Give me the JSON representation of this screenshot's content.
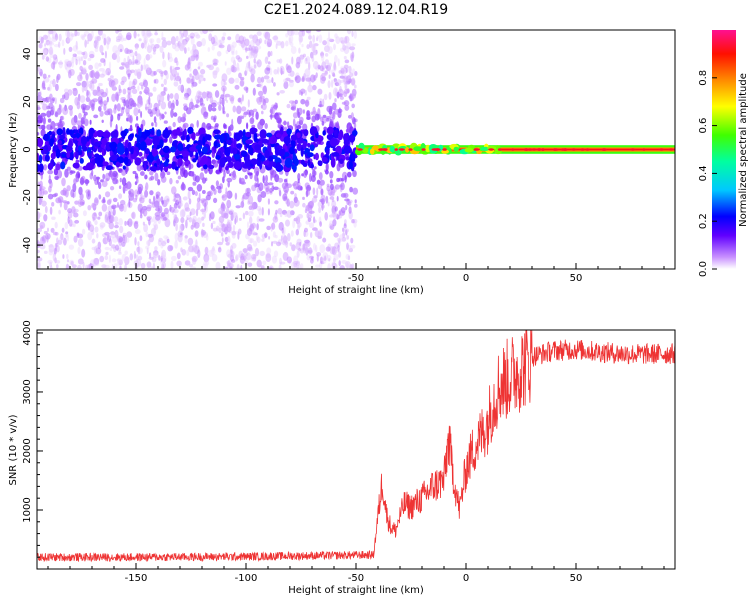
{
  "title": "C2E1.2024.089.12.04.R19",
  "chart_data": [
    {
      "type": "heatmap",
      "xlabel": "Height of straight line (km)",
      "ylabel": "Frequency (Hz)",
      "xlim": [
        -195,
        95
      ],
      "ylim": [
        -50,
        50
      ],
      "xticks": [
        -150,
        -100,
        -50,
        0,
        50
      ],
      "yticks": [
        -40,
        -20,
        0,
        20,
        40
      ],
      "colorbar": {
        "label": "Normalized spectral amplitude",
        "range": [
          0,
          1
        ],
        "ticks": [
          0.0,
          0.2,
          0.4,
          0.6,
          0.8
        ],
        "colors": [
          "#ffffff",
          "#6000ff",
          "#0000ff",
          "#00c8ff",
          "#00ff60",
          "#40ff00",
          "#ffff00",
          "#ff8000",
          "#ff0000",
          "#ff1090"
        ]
      },
      "regions": [
        {
          "x_range": [
            -195,
            -50
          ],
          "description_value": "noise",
          "freq_spread": 50,
          "amplitude": 0.1
        },
        {
          "x_range": [
            -50,
            15
          ],
          "freq_spread": 3,
          "amplitude": 0.85
        },
        {
          "x_range": [
            15,
            95
          ],
          "freq_spread": 1,
          "amplitude": 0.95
        }
      ],
      "grid": false
    },
    {
      "type": "line",
      "xlabel": "Height of straight line (km)",
      "ylabel": "SNR (10 * v/v)",
      "xlim": [
        -195,
        95
      ],
      "ylim": [
        0,
        4050
      ],
      "xticks": [
        -150,
        -100,
        -50,
        0,
        50
      ],
      "yticks": [
        1000,
        2000,
        3000,
        4000
      ],
      "color": "#ee3333",
      "series": [
        {
          "x": [
            -195,
            -150,
            -100,
            -60,
            -42,
            -40,
            -38,
            -36,
            -34,
            -32,
            -30,
            -28,
            -25,
            -20,
            -15,
            -10,
            -8,
            -5,
            -3,
            0,
            3,
            6,
            10,
            12,
            15,
            20,
            25,
            30,
            40,
            50,
            60,
            70,
            80,
            95
          ],
          "y": [
            200,
            200,
            210,
            230,
            240,
            900,
            1500,
            900,
            700,
            650,
            900,
            1100,
            1050,
            1200,
            1400,
            1500,
            2200,
            1400,
            1000,
            1700,
            2000,
            2200,
            2500,
            2800,
            3100,
            3250,
            3400,
            3600,
            3700,
            3720,
            3680,
            3650,
            3640,
            3650
          ]
        }
      ],
      "grid": false
    }
  ]
}
